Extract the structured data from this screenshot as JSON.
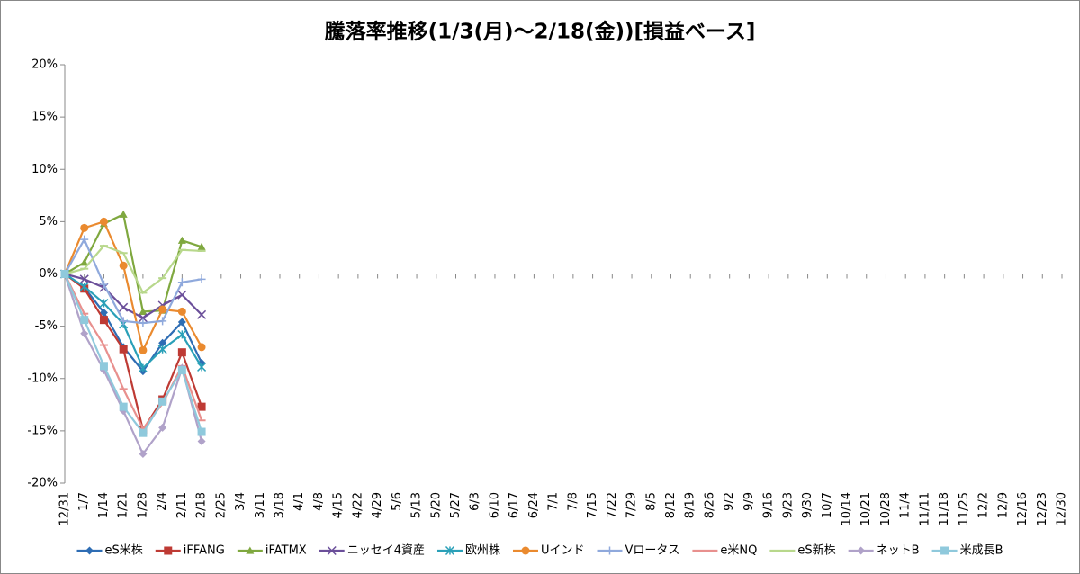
{
  "chart_data": {
    "type": "line",
    "title": "騰落率推移(1/3(月)～2/18(金))[損益ベース]",
    "categories": [
      "12/31",
      "1/7",
      "1/14",
      "1/21",
      "1/28",
      "2/4",
      "2/11",
      "2/18",
      "2/25",
      "3/4",
      "3/11",
      "3/18",
      "4/1",
      "4/8",
      "4/15",
      "4/22",
      "4/29",
      "5/6",
      "5/13",
      "5/20",
      "5/27",
      "6/3",
      "6/10",
      "6/17",
      "6/24",
      "7/1",
      "7/8",
      "7/15",
      "7/22",
      "7/29",
      "8/5",
      "8/12",
      "8/19",
      "8/26",
      "9/2",
      "9/9",
      "9/16",
      "9/23",
      "9/30",
      "10/7",
      "10/14",
      "10/21",
      "10/28",
      "11/4",
      "11/11",
      "11/18",
      "11/25",
      "12/2",
      "12/9",
      "12/16",
      "12/23",
      "12/30"
    ],
    "ylim": [
      -20,
      20
    ],
    "yticks": [
      {
        "value": -20,
        "label": "-20%"
      },
      {
        "value": -15,
        "label": "-15%"
      },
      {
        "value": -10,
        "label": "-10%"
      },
      {
        "value": -5,
        "label": "-5%"
      },
      {
        "value": 0,
        "label": "0%"
      },
      {
        "value": 5,
        "label": "5%"
      },
      {
        "value": 10,
        "label": "10%"
      },
      {
        "value": 15,
        "label": "15%"
      },
      {
        "value": 20,
        "label": "20%"
      }
    ],
    "grid": false,
    "legend": "bottom",
    "series": [
      {
        "name": "eS米株",
        "color": "#2e6db4",
        "marker": "diamond",
        "values": [
          0,
          -1.3,
          -3.7,
          -7.0,
          -9.3,
          -6.6,
          -4.6,
          -8.5,
          null,
          null,
          null,
          null,
          null,
          null,
          null,
          null,
          null,
          null,
          null,
          null,
          null,
          null,
          null,
          null,
          null,
          null,
          null,
          null,
          null,
          null,
          null,
          null,
          null,
          null,
          null,
          null,
          null,
          null,
          null,
          null,
          null,
          null,
          null,
          null,
          null,
          null,
          null,
          null,
          null,
          null,
          null,
          null
        ]
      },
      {
        "name": "iFFANG",
        "color": "#be3a34",
        "marker": "square",
        "values": [
          0,
          -1.4,
          -4.4,
          -7.2,
          -14.9,
          -12.0,
          -7.5,
          -12.7,
          null,
          null,
          null,
          null,
          null,
          null,
          null,
          null,
          null,
          null,
          null,
          null,
          null,
          null,
          null,
          null,
          null,
          null,
          null,
          null,
          null,
          null,
          null,
          null,
          null,
          null,
          null,
          null,
          null,
          null,
          null,
          null,
          null,
          null,
          null,
          null,
          null,
          null,
          null,
          null,
          null,
          null,
          null,
          null
        ]
      },
      {
        "name": "iFATMX",
        "color": "#7fa83f",
        "marker": "triangle",
        "values": [
          0,
          1.1,
          4.8,
          5.7,
          -3.6,
          -3.5,
          3.2,
          2.6,
          null,
          null,
          null,
          null,
          null,
          null,
          null,
          null,
          null,
          null,
          null,
          null,
          null,
          null,
          null,
          null,
          null,
          null,
          null,
          null,
          null,
          null,
          null,
          null,
          null,
          null,
          null,
          null,
          null,
          null,
          null,
          null,
          null,
          null,
          null,
          null,
          null,
          null,
          null,
          null,
          null,
          null,
          null,
          null
        ]
      },
      {
        "name": "ニッセイ4資産",
        "color": "#6b4f9a",
        "marker": "x",
        "values": [
          0,
          -0.5,
          -1.3,
          -3.2,
          -4.2,
          -3.0,
          -2.0,
          -3.9,
          null,
          null,
          null,
          null,
          null,
          null,
          null,
          null,
          null,
          null,
          null,
          null,
          null,
          null,
          null,
          null,
          null,
          null,
          null,
          null,
          null,
          null,
          null,
          null,
          null,
          null,
          null,
          null,
          null,
          null,
          null,
          null,
          null,
          null,
          null,
          null,
          null,
          null,
          null,
          null,
          null,
          null,
          null,
          null
        ]
      },
      {
        "name": "欧州株",
        "color": "#2aa0b8",
        "marker": "star",
        "values": [
          0,
          -1.2,
          -2.8,
          -4.8,
          -9.0,
          -7.2,
          -5.8,
          -8.9,
          null,
          null,
          null,
          null,
          null,
          null,
          null,
          null,
          null,
          null,
          null,
          null,
          null,
          null,
          null,
          null,
          null,
          null,
          null,
          null,
          null,
          null,
          null,
          null,
          null,
          null,
          null,
          null,
          null,
          null,
          null,
          null,
          null,
          null,
          null,
          null,
          null,
          null,
          null,
          null,
          null,
          null,
          null,
          null
        ]
      },
      {
        "name": "Uインド",
        "color": "#ea8a2f",
        "marker": "circle",
        "values": [
          0,
          4.4,
          5.0,
          0.8,
          -7.3,
          -3.4,
          -3.6,
          -7.0,
          null,
          null,
          null,
          null,
          null,
          null,
          null,
          null,
          null,
          null,
          null,
          null,
          null,
          null,
          null,
          null,
          null,
          null,
          null,
          null,
          null,
          null,
          null,
          null,
          null,
          null,
          null,
          null,
          null,
          null,
          null,
          null,
          null,
          null,
          null,
          null,
          null,
          null,
          null,
          null,
          null,
          null,
          null,
          null
        ]
      },
      {
        "name": "Vロータス",
        "color": "#8fa9dc",
        "marker": "plus",
        "values": [
          0,
          3.3,
          -1.0,
          -4.5,
          -4.7,
          -4.5,
          -0.8,
          -0.5,
          null,
          null,
          null,
          null,
          null,
          null,
          null,
          null,
          null,
          null,
          null,
          null,
          null,
          null,
          null,
          null,
          null,
          null,
          null,
          null,
          null,
          null,
          null,
          null,
          null,
          null,
          null,
          null,
          null,
          null,
          null,
          null,
          null,
          null,
          null,
          null,
          null,
          null,
          null,
          null,
          null,
          null,
          null,
          null
        ]
      },
      {
        "name": "e米NQ",
        "color": "#e8908e",
        "marker": "dash",
        "values": [
          0,
          -3.8,
          -6.8,
          -11.0,
          -14.8,
          -12.4,
          -8.8,
          -14.0,
          null,
          null,
          null,
          null,
          null,
          null,
          null,
          null,
          null,
          null,
          null,
          null,
          null,
          null,
          null,
          null,
          null,
          null,
          null,
          null,
          null,
          null,
          null,
          null,
          null,
          null,
          null,
          null,
          null,
          null,
          null,
          null,
          null,
          null,
          null,
          null,
          null,
          null,
          null,
          null,
          null,
          null,
          null,
          null
        ]
      },
      {
        "name": "eS新株",
        "color": "#b8d88c",
        "marker": "dash",
        "values": [
          0,
          0.5,
          2.7,
          2.0,
          -1.8,
          -0.4,
          2.3,
          2.2,
          null,
          null,
          null,
          null,
          null,
          null,
          null,
          null,
          null,
          null,
          null,
          null,
          null,
          null,
          null,
          null,
          null,
          null,
          null,
          null,
          null,
          null,
          null,
          null,
          null,
          null,
          null,
          null,
          null,
          null,
          null,
          null,
          null,
          null,
          null,
          null,
          null,
          null,
          null,
          null,
          null,
          null,
          null,
          null
        ]
      },
      {
        "name": "ネットB",
        "color": "#b0a2c9",
        "marker": "diamond",
        "values": [
          0,
          -5.7,
          -9.2,
          -13.1,
          -17.2,
          -14.7,
          -9.0,
          -16.0,
          null,
          null,
          null,
          null,
          null,
          null,
          null,
          null,
          null,
          null,
          null,
          null,
          null,
          null,
          null,
          null,
          null,
          null,
          null,
          null,
          null,
          null,
          null,
          null,
          null,
          null,
          null,
          null,
          null,
          null,
          null,
          null,
          null,
          null,
          null,
          null,
          null,
          null,
          null,
          null,
          null,
          null,
          null,
          null
        ]
      },
      {
        "name": "米成長B",
        "color": "#8fc9dc",
        "marker": "square",
        "values": [
          0,
          -4.4,
          -8.8,
          -12.7,
          -15.2,
          -12.2,
          -9.2,
          -15.1,
          null,
          null,
          null,
          null,
          null,
          null,
          null,
          null,
          null,
          null,
          null,
          null,
          null,
          null,
          null,
          null,
          null,
          null,
          null,
          null,
          null,
          null,
          null,
          null,
          null,
          null,
          null,
          null,
          null,
          null,
          null,
          null,
          null,
          null,
          null,
          null,
          null,
          null,
          null,
          null,
          null,
          null,
          null,
          null
        ]
      }
    ]
  }
}
